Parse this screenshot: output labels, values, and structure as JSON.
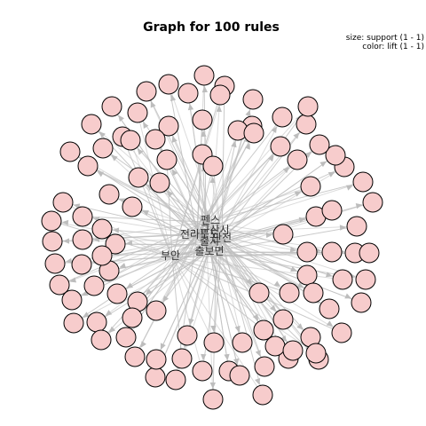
{
  "title": "Graph for 100 rules",
  "legend": {
    "size_line": "size: support (1 - 1)",
    "color_line": "color: lift (1 - 1)"
  },
  "colors": {
    "rule_fill": "#f7cccc",
    "rule_stroke": "#000000",
    "edge": "#bdbdbd",
    "item_label": "#333333"
  },
  "graph": {
    "rule_count": 100,
    "items": [
      "펜스",
      "전라북도",
      "군산시",
      "출시",
      "안전",
      "출보면",
      "부안"
    ]
  }
}
